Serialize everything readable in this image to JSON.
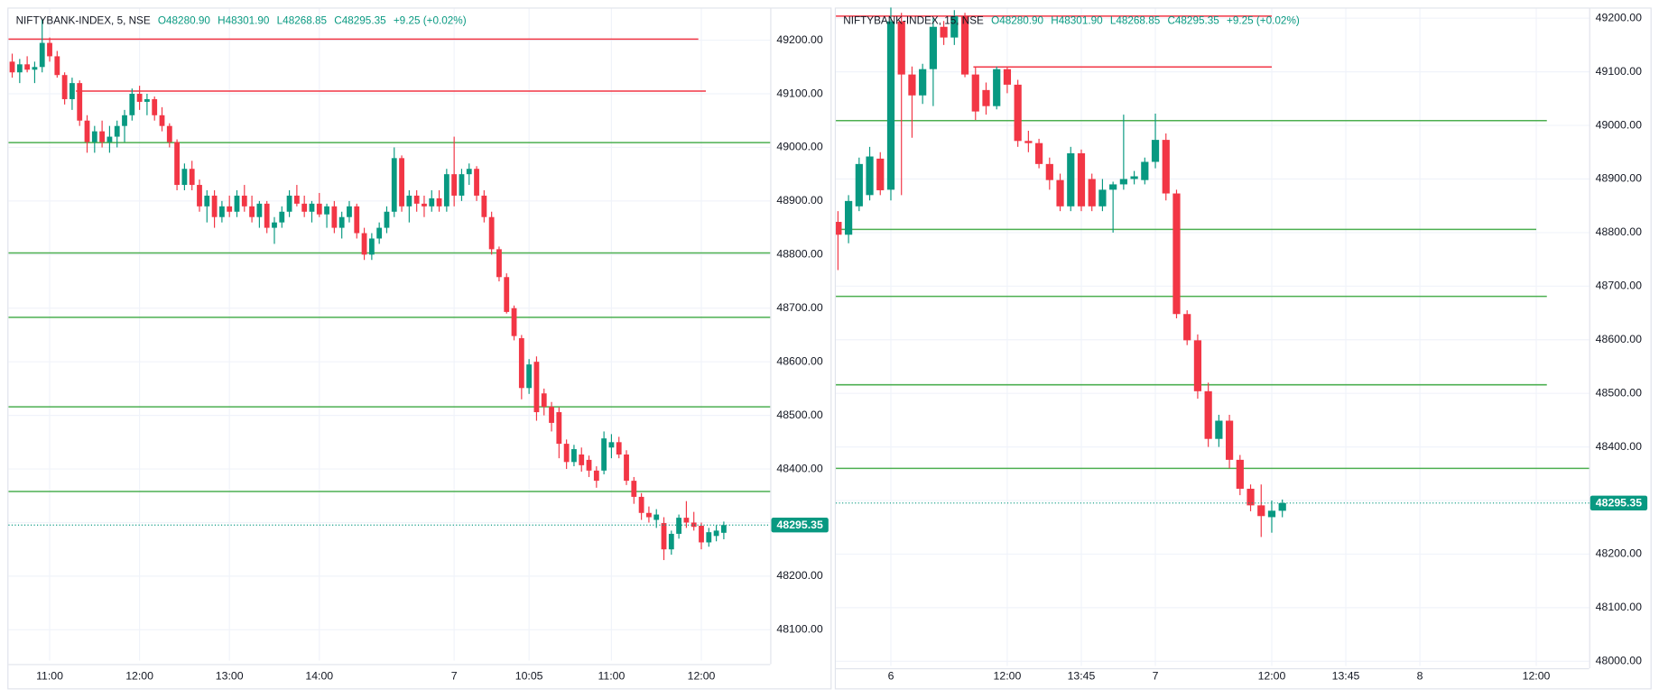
{
  "chart_data": [
    {
      "type": "candlestick",
      "legend": {
        "symbol": "NIFTYBANK-INDEX, 5, NSE",
        "open": "O48280.90",
        "high": "H48301.90",
        "low": "L48268.85",
        "close": "C48295.35",
        "change": "+9.25 (+0.02%)"
      },
      "up_color": "#089981",
      "down_color": "#f23645",
      "grid": true,
      "xlim": [
        -0.5,
        101.2
      ],
      "xticks": [
        {
          "value": 5,
          "label": "11:00"
        },
        {
          "value": 17,
          "label": "12:00"
        },
        {
          "value": 29,
          "label": "13:00"
        },
        {
          "value": 41,
          "label": "14:00"
        },
        {
          "value": 59,
          "label": "7"
        },
        {
          "value": 69,
          "label": "10:05"
        },
        {
          "value": 80,
          "label": "11:00"
        },
        {
          "value": 92,
          "label": "12:00"
        }
      ],
      "ylim": [
        48042,
        49255
      ],
      "yticks": [
        {
          "value": 48100,
          "label": "48100.00"
        },
        {
          "value": 48200,
          "label": "48200.00"
        },
        {
          "value": 48300,
          "label": "48300.00"
        },
        {
          "value": 48400,
          "label": "48400.00"
        },
        {
          "value": 48500,
          "label": "48500.00"
        },
        {
          "value": 48600,
          "label": "48600.00"
        },
        {
          "value": 48700,
          "label": "48700.00"
        },
        {
          "value": 48800,
          "label": "48800.00"
        },
        {
          "value": 48900,
          "label": "48900.00"
        },
        {
          "value": 49000,
          "label": "49000.00"
        },
        {
          "value": 49100,
          "label": "49100.00"
        },
        {
          "value": 49200,
          "label": "49200.00"
        }
      ],
      "last_price": 48295.35,
      "last_price_color": "#089981",
      "levels": [
        {
          "value": 49202,
          "color": "#f23645",
          "x_range": [
            -0.5,
            91.6
          ]
        },
        {
          "value": 49105,
          "color": "#f23645",
          "x_range": [
            8.5,
            92.6
          ]
        },
        {
          "value": 49009,
          "color": "#4caf50",
          "x_range": [
            -0.5,
            101.2
          ]
        },
        {
          "value": 48803,
          "color": "#4caf50",
          "x_range": [
            -0.5,
            101.2
          ]
        },
        {
          "value": 48683,
          "color": "#4caf50",
          "x_range": [
            -0.5,
            101.2
          ]
        },
        {
          "value": 48516,
          "color": "#4caf50",
          "x_range": [
            -0.5,
            101.2
          ]
        },
        {
          "value": 48358,
          "color": "#4caf50",
          "x_range": [
            -0.5,
            101.2
          ]
        }
      ],
      "candles": {
        "x": [
          0,
          1,
          2,
          3,
          4,
          5,
          6,
          7,
          8,
          9,
          10,
          11,
          12,
          13,
          14,
          15,
          16,
          17,
          18,
          19,
          20,
          21,
          22,
          23,
          24,
          25,
          26,
          27,
          28,
          29,
          30,
          31,
          32,
          33,
          34,
          35,
          36,
          37,
          38,
          39,
          40,
          41,
          42,
          43,
          44,
          45,
          46,
          47,
          48,
          49,
          50,
          51,
          52,
          53,
          54,
          55,
          56,
          57,
          58,
          59,
          60,
          61,
          62,
          63,
          64,
          65,
          66,
          67,
          68,
          69,
          70,
          71,
          72,
          73,
          74,
          75,
          76,
          77,
          78,
          79,
          80,
          81,
          82,
          83,
          84,
          85,
          86,
          87,
          88,
          89,
          90,
          91,
          92,
          93,
          94,
          95
        ],
        "open": [
          49160,
          49140,
          49155,
          49145,
          49150,
          49195,
          49170,
          49135,
          49090,
          49120,
          49050,
          49010,
          49030,
          49010,
          49020,
          49040,
          49060,
          49100,
          49085,
          49090,
          49060,
          49040,
          49010,
          48930,
          48960,
          48930,
          48890,
          48910,
          48870,
          48890,
          48880,
          48910,
          48890,
          48870,
          48895,
          48850,
          48860,
          48880,
          48910,
          48895,
          48880,
          48895,
          48875,
          48890,
          48850,
          48870,
          48890,
          48840,
          48800,
          48830,
          48850,
          48880,
          48980,
          48890,
          48910,
          48895,
          48890,
          48905,
          48890,
          48950,
          48910,
          48950,
          48960,
          48910,
          48870,
          48810,
          48758,
          48700,
          48644,
          48551,
          48600,
          48541,
          48516,
          48506,
          48447,
          48413,
          48427,
          48417,
          48397,
          48397,
          48440,
          48450,
          48427,
          48378,
          48348,
          48318,
          48305,
          48299,
          48250,
          48279,
          48309,
          48300,
          48294,
          48263,
          48275,
          48280.9
        ],
        "high": [
          49175,
          49165,
          49170,
          49160,
          49240,
          49205,
          49180,
          49140,
          49130,
          49125,
          49060,
          49040,
          49050,
          49040,
          49050,
          49070,
          49110,
          49115,
          49100,
          49095,
          49075,
          49045,
          49015,
          48970,
          48975,
          48940,
          48920,
          48920,
          48900,
          48910,
          48920,
          48930,
          48910,
          48900,
          48900,
          48870,
          48890,
          48920,
          48930,
          48910,
          48900,
          48915,
          48895,
          48900,
          48880,
          48900,
          48895,
          48850,
          48840,
          48860,
          48890,
          49000,
          48985,
          48920,
          48920,
          48910,
          48920,
          48920,
          48960,
          49020,
          48960,
          48970,
          48965,
          48920,
          48880,
          48815,
          48765,
          48705,
          48650,
          48605,
          48610,
          48550,
          48525,
          48515,
          48455,
          48445,
          48440,
          48425,
          48405,
          48470,
          48465,
          48460,
          48435,
          48385,
          48355,
          48330,
          48325,
          48310,
          48285,
          48315,
          48340,
          48320,
          48300,
          48290,
          48295,
          48301.9
        ],
        "low": [
          49130,
          49120,
          49140,
          49120,
          49140,
          49160,
          49130,
          49080,
          49070,
          49040,
          48990,
          48990,
          49000,
          48990,
          49000,
          49010,
          49050,
          49070,
          49060,
          49050,
          49030,
          49000,
          48920,
          48920,
          48920,
          48880,
          48860,
          48850,
          48860,
          48870,
          48870,
          48880,
          48860,
          48850,
          48840,
          48820,
          48850,
          48870,
          48890,
          48870,
          48860,
          48870,
          48850,
          48840,
          48830,
          48860,
          48830,
          48790,
          48790,
          48820,
          48840,
          48870,
          48880,
          48860,
          48880,
          48870,
          48880,
          48880,
          48880,
          48890,
          48900,
          48930,
          48900,
          48860,
          48800,
          48750,
          48690,
          48640,
          48530,
          48540,
          48490,
          48500,
          48470,
          48420,
          48400,
          48405,
          48395,
          48385,
          48365,
          48390,
          48420,
          48420,
          48370,
          48335,
          48305,
          48300,
          48290,
          48230,
          48240,
          48270,
          48290,
          48285,
          48250,
          48255,
          48265,
          48268.85
        ],
        "close": [
          49140,
          49155,
          49145,
          49150,
          49195,
          49170,
          49135,
          49090,
          49120,
          49050,
          49010,
          49030,
          49010,
          49020,
          49040,
          49060,
          49100,
          49085,
          49090,
          49060,
          49040,
          49010,
          48930,
          48960,
          48930,
          48890,
          48910,
          48870,
          48890,
          48880,
          48910,
          48890,
          48870,
          48895,
          48850,
          48860,
          48880,
          48910,
          48895,
          48880,
          48895,
          48875,
          48890,
          48850,
          48870,
          48890,
          48840,
          48800,
          48830,
          48850,
          48880,
          48980,
          48890,
          48910,
          48895,
          48890,
          48905,
          48890,
          48950,
          48910,
          48950,
          48960,
          48910,
          48870,
          48810,
          48758,
          48693,
          48648,
          48551,
          48595,
          48506,
          48516,
          48486,
          48447,
          48413,
          48437,
          48407,
          48397,
          48378,
          48457,
          48450,
          48427,
          48378,
          48348,
          48318,
          48310,
          48315,
          48250,
          48279,
          48309,
          48300,
          48292,
          48263,
          48282,
          48285,
          48295.35
        ]
      }
    },
    {
      "type": "candlestick",
      "legend": {
        "symbol": "NIFTYBANK-INDEX, 15, NSE",
        "open": "O48280.90",
        "high": "H48301.90",
        "low": "L48268.85",
        "close": "C48295.35",
        "change": "+9.25 (+0.02%)"
      },
      "up_color": "#089981",
      "down_color": "#f23645",
      "grid": true,
      "xlim": [
        -5.2,
        66
      ],
      "xticks": [
        {
          "value": 0,
          "label": "6"
        },
        {
          "value": 11,
          "label": "12:00"
        },
        {
          "value": 18,
          "label": "13:45"
        },
        {
          "value": 25,
          "label": "7"
        },
        {
          "value": 36,
          "label": "12:00"
        },
        {
          "value": 43,
          "label": "13:45"
        },
        {
          "value": 50,
          "label": "8"
        },
        {
          "value": 61,
          "label": "12:00"
        }
      ],
      "ylim": [
        47991,
        49214
      ],
      "yticks": [
        {
          "value": 48000,
          "label": "48000.00"
        },
        {
          "value": 48100,
          "label": "48100.00"
        },
        {
          "value": 48200,
          "label": "48200.00"
        },
        {
          "value": 48300,
          "label": "48300.00"
        },
        {
          "value": 48400,
          "label": "48400.00"
        },
        {
          "value": 48500,
          "label": "48500.00"
        },
        {
          "value": 48600,
          "label": "48600.00"
        },
        {
          "value": 48700,
          "label": "48700.00"
        },
        {
          "value": 48800,
          "label": "48800.00"
        },
        {
          "value": 48900,
          "label": "48900.00"
        },
        {
          "value": 49000,
          "label": "49000.00"
        },
        {
          "value": 49100,
          "label": "49100.00"
        },
        {
          "value": 49200,
          "label": "49200.00"
        }
      ],
      "last_price": 48295.35,
      "last_price_color": "#089981",
      "levels": [
        {
          "value": 49204,
          "color": "#f23645",
          "x_range": [
            -5.2,
            36
          ]
        },
        {
          "value": 49109,
          "color": "#f23645",
          "x_range": [
            7.8,
            36
          ]
        },
        {
          "value": 49009,
          "color": "#4caf50",
          "x_range": [
            -5.2,
            62
          ]
        },
        {
          "value": 48806,
          "color": "#4caf50",
          "x_range": [
            -5.2,
            61
          ]
        },
        {
          "value": 48681,
          "color": "#4caf50",
          "x_range": [
            -5.2,
            62
          ]
        },
        {
          "value": 48516,
          "color": "#4caf50",
          "x_range": [
            -5.2,
            62
          ]
        },
        {
          "value": 48360,
          "color": "#4caf50",
          "x_range": [
            -5.2,
            66
          ]
        }
      ],
      "candles": {
        "x": [
          -5,
          -4,
          -3,
          -2,
          -1,
          0,
          1,
          2,
          3,
          4,
          5,
          6,
          7,
          8,
          9,
          10,
          11,
          12,
          13,
          14,
          15,
          16,
          17,
          18,
          19,
          20,
          21,
          22,
          23,
          24,
          25,
          26,
          27,
          28,
          29,
          30,
          31,
          32,
          33,
          34,
          35,
          36,
          37
        ],
        "open": [
          48820,
          48796,
          48849,
          48870,
          48938,
          48880,
          49194,
          49095,
          49056,
          49105,
          49184,
          49164,
          49204,
          49095,
          49066,
          49036,
          49105,
          49076,
          48971,
          48967,
          48928,
          48898,
          48849,
          48948,
          48900,
          48849,
          48880,
          48890,
          48900,
          48898,
          48932,
          48973,
          48873,
          48648,
          48599,
          48504,
          48415,
          48449,
          48376,
          48322,
          48291,
          48269,
          48280.9
        ],
        "high": [
          48840,
          48870,
          48940,
          48960,
          48950,
          49220,
          49210,
          49110,
          49115,
          49200,
          49195,
          49215,
          49210,
          49110,
          49080,
          49110,
          49110,
          49085,
          48990,
          48975,
          48940,
          48910,
          48960,
          48955,
          48910,
          48900,
          48895,
          49020,
          48915,
          48940,
          49022,
          48985,
          48880,
          48655,
          48610,
          48520,
          48460,
          48460,
          48385,
          48330,
          48330,
          48300,
          48301.9
        ],
        "low": [
          48730,
          48780,
          48840,
          48860,
          48870,
          48860,
          48870,
          48977,
          49040,
          49036,
          49150,
          49150,
          49090,
          49010,
          49020,
          49030,
          49060,
          48960,
          48950,
          48920,
          48880,
          48840,
          48840,
          48840,
          48840,
          48840,
          48800,
          48880,
          48890,
          48890,
          48920,
          48860,
          48640,
          48590,
          48490,
          48400,
          48400,
          48360,
          48310,
          48280,
          48232,
          48240,
          48268.85
        ],
        "close": [
          48796,
          48859,
          48928,
          48942,
          48879,
          49194,
          49095,
          49056,
          49105,
          49184,
          49164,
          49204,
          49095,
          49026,
          49036,
          49105,
          49076,
          48971,
          48967,
          48928,
          48898,
          48849,
          48948,
          48849,
          48849,
          48880,
          48890,
          48900,
          48905,
          48932,
          48973,
          48873,
          48648,
          48599,
          48504,
          48415,
          48449,
          48376,
          48322,
          48291,
          48271,
          48281,
          48295.35
        ]
      }
    }
  ]
}
